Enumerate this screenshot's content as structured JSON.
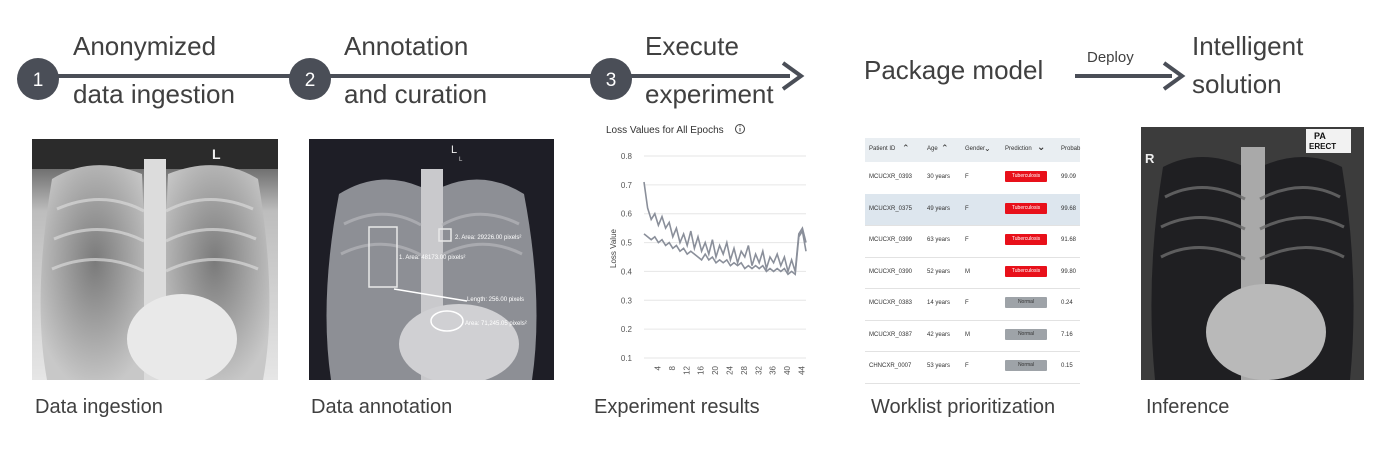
{
  "steps": [
    {
      "number": "1",
      "title_line1": "Anonymized",
      "title_line2": "data ingestion"
    },
    {
      "number": "2",
      "title_line1": "Annotation",
      "title_line2": "and curation"
    },
    {
      "number": "3",
      "title_line1": "Execute",
      "title_line2": "experiment"
    }
  ],
  "package": {
    "title": "Package model"
  },
  "deploy_label": "Deploy",
  "solution": {
    "title_line1": "Intelligent",
    "title_line2": "solution"
  },
  "captions": [
    "Data ingestion",
    "Data annotation",
    "Experiment results",
    "Worklist prioritization",
    "Inference"
  ],
  "xray_markers": {
    "left": "L",
    "left_sub": "L",
    "right": "R",
    "pa": "PA",
    "erect": "ERECT"
  },
  "annotations": [
    "2. Area: 29226.00 pixels²",
    "1. Area: 48173.00 pixels²",
    "Length: 256.00 pixels",
    "Area: 71,245.05 pixels²"
  ],
  "chart_data": {
    "type": "line",
    "title": "Loss Values for All Epochs",
    "ylabel": "Loss Value",
    "xlabel": "",
    "ylim": [
      0.1,
      0.8
    ],
    "yticks": [
      0.1,
      0.2,
      0.3,
      0.4,
      0.5,
      0.6,
      0.7,
      0.8
    ],
    "xticks": [
      4,
      8,
      12,
      16,
      20,
      24,
      28,
      32,
      36,
      40,
      44
    ],
    "xlim": [
      0,
      45
    ],
    "series": [
      {
        "values": [
          [
            0,
            0.71
          ],
          [
            1,
            0.62
          ],
          [
            2,
            0.58
          ],
          [
            3,
            0.6
          ],
          [
            4,
            0.56
          ],
          [
            5,
            0.59
          ],
          [
            6,
            0.55
          ],
          [
            7,
            0.57
          ],
          [
            8,
            0.52
          ],
          [
            9,
            0.55
          ],
          [
            10,
            0.5
          ],
          [
            11,
            0.53
          ],
          [
            12,
            0.49
          ],
          [
            13,
            0.54
          ],
          [
            14,
            0.48
          ],
          [
            15,
            0.52
          ],
          [
            16,
            0.47
          ],
          [
            17,
            0.5
          ],
          [
            18,
            0.46
          ],
          [
            19,
            0.51
          ],
          [
            20,
            0.45
          ],
          [
            21,
            0.49
          ],
          [
            22,
            0.46
          ],
          [
            23,
            0.5
          ],
          [
            24,
            0.44
          ],
          [
            25,
            0.48
          ],
          [
            26,
            0.43
          ],
          [
            27,
            0.47
          ],
          [
            28,
            0.45
          ],
          [
            29,
            0.49
          ],
          [
            30,
            0.42
          ],
          [
            31,
            0.46
          ],
          [
            32,
            0.43
          ],
          [
            33,
            0.47
          ],
          [
            34,
            0.41
          ],
          [
            35,
            0.45
          ],
          [
            36,
            0.43
          ],
          [
            37,
            0.46
          ],
          [
            38,
            0.42
          ],
          [
            39,
            0.45
          ],
          [
            40,
            0.4
          ],
          [
            41,
            0.44
          ],
          [
            42,
            0.4
          ],
          [
            43,
            0.53
          ],
          [
            44,
            0.55
          ],
          [
            45,
            0.5
          ]
        ]
      },
      {
        "values": [
          [
            0,
            0.53
          ],
          [
            1,
            0.52
          ],
          [
            2,
            0.51
          ],
          [
            3,
            0.52
          ],
          [
            4,
            0.5
          ],
          [
            5,
            0.51
          ],
          [
            6,
            0.49
          ],
          [
            7,
            0.5
          ],
          [
            8,
            0.48
          ],
          [
            9,
            0.49
          ],
          [
            10,
            0.47
          ],
          [
            11,
            0.48
          ],
          [
            12,
            0.46
          ],
          [
            13,
            0.47
          ],
          [
            14,
            0.46
          ],
          [
            15,
            0.45
          ],
          [
            16,
            0.44
          ],
          [
            17,
            0.46
          ],
          [
            18,
            0.44
          ],
          [
            19,
            0.45
          ],
          [
            20,
            0.43
          ],
          [
            21,
            0.44
          ],
          [
            22,
            0.43
          ],
          [
            23,
            0.44
          ],
          [
            24,
            0.42
          ],
          [
            25,
            0.43
          ],
          [
            26,
            0.42
          ],
          [
            27,
            0.43
          ],
          [
            28,
            0.41
          ],
          [
            29,
            0.42
          ],
          [
            30,
            0.41
          ],
          [
            31,
            0.42
          ],
          [
            32,
            0.41
          ],
          [
            33,
            0.42
          ],
          [
            34,
            0.4
          ],
          [
            35,
            0.41
          ],
          [
            36,
            0.4
          ],
          [
            37,
            0.41
          ],
          [
            38,
            0.4
          ],
          [
            39,
            0.41
          ],
          [
            40,
            0.39
          ],
          [
            41,
            0.4
          ],
          [
            42,
            0.39
          ],
          [
            43,
            0.52
          ],
          [
            44,
            0.54
          ],
          [
            45,
            0.47
          ]
        ]
      }
    ]
  },
  "worklist": {
    "columns": [
      "Patient ID",
      "Age",
      "Gender",
      "Prediction",
      "Probab"
    ],
    "rows": [
      {
        "id": "MCUCXR_0393",
        "age": "30 years",
        "gender": "F",
        "prediction": "Tuberculosis",
        "prob": "99.09",
        "highlight": false
      },
      {
        "id": "MCUCXR_0375",
        "age": "49 years",
        "gender": "F",
        "prediction": "Tuberculosis",
        "prob": "99.68",
        "highlight": true
      },
      {
        "id": "MCUCXR_0399",
        "age": "63 years",
        "gender": "F",
        "prediction": "Tuberculosis",
        "prob": "91.68",
        "highlight": false
      },
      {
        "id": "MCUCXR_0390",
        "age": "52 years",
        "gender": "M",
        "prediction": "Tuberculosis",
        "prob": "99.80",
        "highlight": false
      },
      {
        "id": "MCUCXR_0383",
        "age": "14 years",
        "gender": "F",
        "prediction": "Normal",
        "prob": "0.24",
        "highlight": false
      },
      {
        "id": "MCUCXR_0387",
        "age": "42 years",
        "gender": "M",
        "prediction": "Normal",
        "prob": "7.16",
        "highlight": false
      },
      {
        "id": "CHNCXR_0007",
        "age": "53 years",
        "gender": "F",
        "prediction": "Normal",
        "prob": "0.15",
        "highlight": false
      }
    ]
  },
  "colors": {
    "circle": "#4a4e57",
    "line": "#4a4e57",
    "tuberculosis": "#e8101a",
    "normal": "#9ea3a8",
    "highlight_row": "#dde6ee"
  }
}
